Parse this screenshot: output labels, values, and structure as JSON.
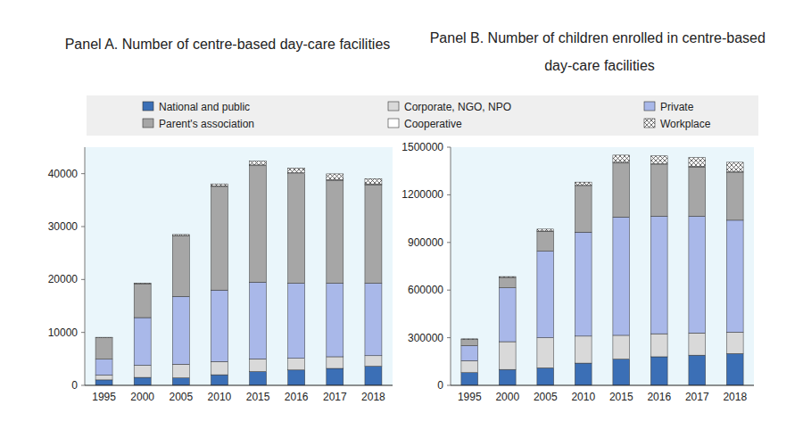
{
  "chart_data": [
    {
      "type": "bar",
      "title": "Panel A. Number of centre-based day-care facilities",
      "categories": [
        "1995",
        "2000",
        "2005",
        "2010",
        "2015",
        "2016",
        "2017",
        "2018"
      ],
      "series": [
        {
          "name": "National and public",
          "color": "#3b6fb6",
          "values": [
            1030,
            1500,
            1400,
            2000,
            2600,
            2900,
            3200,
            3600
          ]
        },
        {
          "name": "Corporate, NGO, NPO",
          "color": "#d9d9d9",
          "values": [
            900,
            2300,
            2600,
            2500,
            2400,
            2200,
            2200,
            2000
          ]
        },
        {
          "name": "Private",
          "color": "#a9b8e9",
          "values": [
            3000,
            9000,
            12800,
            13500,
            14500,
            14200,
            13900,
            13700
          ]
        },
        {
          "name": "Parent's association",
          "color": "#a6a6a6",
          "values": [
            4100,
            6400,
            11500,
            19600,
            22000,
            20700,
            19400,
            18600
          ]
        },
        {
          "name": "Cooperative",
          "color": "#ffffff",
          "values": [
            0,
            0,
            0,
            60,
            150,
            160,
            160,
            160
          ]
        },
        {
          "name": "Workplace",
          "color": "#ffffff",
          "marker": "cross",
          "values": [
            50,
            100,
            200,
            400,
            700,
            900,
            1100,
            1000
          ]
        }
      ],
      "ylim": [
        0,
        45000
      ],
      "yticks": [
        0,
        10000,
        20000,
        30000,
        40000
      ],
      "stacked": true,
      "grid": false,
      "legend": "top"
    },
    {
      "type": "bar",
      "title": "Panel B. Number of children enrolled in centre-based day-care facilities",
      "categories": [
        "1995",
        "2000",
        "2005",
        "2010",
        "2015",
        "2016",
        "2017",
        "2018"
      ],
      "series": [
        {
          "name": "National and public",
          "color": "#3b6fb6",
          "values": [
            80000,
            100000,
            110000,
            140000,
            165000,
            180000,
            190000,
            200000
          ]
        },
        {
          "name": "Corporate, NGO, NPO",
          "color": "#d9d9d9",
          "values": [
            75000,
            175000,
            190000,
            170000,
            150000,
            145000,
            140000,
            135000
          ]
        },
        {
          "name": "Private",
          "color": "#a9b8e9",
          "values": [
            95000,
            339000,
            545000,
            655000,
            745000,
            740000,
            735000,
            705000
          ]
        },
        {
          "name": "Parent's association",
          "color": "#a6a6a6",
          "values": [
            40000,
            66000,
            125000,
            290000,
            340000,
            325000,
            310000,
            300000
          ]
        },
        {
          "name": "Cooperative",
          "color": "#ffffff",
          "values": [
            0,
            0,
            2000,
            5000,
            5000,
            5000,
            5000,
            5000
          ]
        },
        {
          "name": "Workplace",
          "color": "#ffffff",
          "marker": "cross",
          "values": [
            3000,
            5000,
            12000,
            20000,
            45000,
            50000,
            55000,
            60000
          ]
        }
      ],
      "ylim": [
        0,
        1500000
      ],
      "yticks": [
        0,
        300000,
        600000,
        900000,
        1200000,
        1500000
      ],
      "stacked": true,
      "grid": false
    }
  ]
}
